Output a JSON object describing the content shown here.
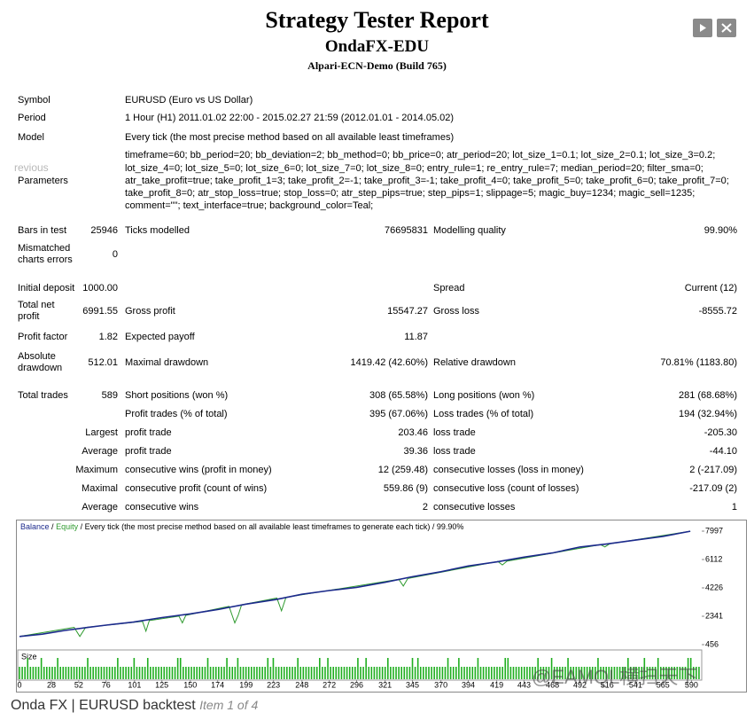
{
  "header": {
    "title": "Strategy Tester Report",
    "expert": "OndaFX-EDU",
    "server": "Alpari-ECN-Demo (Build 765)"
  },
  "nav_prev": "revious",
  "info": [
    {
      "label": "Symbol",
      "value": "EURUSD (Euro vs US Dollar)"
    },
    {
      "label": "Period",
      "value": "1 Hour (H1) 2011.01.02 22:00 - 2015.02.27 21:59 (2012.01.01 - 2014.05.02)"
    },
    {
      "label": "Model",
      "value": "Every tick (the most precise method based on all available least timeframes)"
    },
    {
      "label": "Parameters",
      "value": "timeframe=60; bb_period=20; bb_deviation=2; bb_method=0; bb_price=0; atr_period=20; lot_size_1=0.1; lot_size_2=0.1; lot_size_3=0.2; lot_size_4=0; lot_size_5=0; lot_size_6=0; lot_size_7=0; lot_size_8=0; entry_rule=1; re_entry_rule=7; median_period=20; filter_sma=0; atr_take_profit=true; take_profit_1=3; take_profit_2=-1; take_profit_3=-1; take_profit_4=0; take_profit_5=0; take_profit_6=0; take_profit_7=0; take_profit_8=0; atr_stop_loss=true; stop_loss=0; atr_step_pips=true; step_pips=1; slippage=5; magic_buy=1234; magic_sell=1235; comment=\"\"; text_interface=true; background_color=Teal;"
    }
  ],
  "stats": [
    [
      "Bars in test",
      "25946",
      "Ticks modelled",
      "76695831",
      "Modelling quality",
      "99.90%"
    ],
    [
      "Mismatched charts errors",
      "0",
      null,
      null,
      null,
      null
    ],
    [
      "Initial deposit",
      "1000.00",
      null,
      null,
      "Spread",
      "Current (12)"
    ],
    [
      "Total net profit",
      "6991.55",
      "Gross profit",
      "15547.27",
      "Gross loss",
      "-8555.72"
    ],
    [
      "Profit factor",
      "1.82",
      "Expected payoff",
      "11.87",
      null,
      null
    ],
    [
      "Absolute drawdown",
      "512.01",
      "Maximal drawdown",
      "1419.42 (42.60%)",
      "Relative drawdown",
      "70.81% (1183.80)"
    ],
    [
      "Total trades",
      "589",
      "Short positions (won %)",
      "308 (65.58%)",
      "Long positions (won %)",
      "281 (68.68%)"
    ],
    [
      null,
      null,
      "Profit trades (% of total)",
      "395 (67.06%)",
      "Loss trades (% of total)",
      "194 (32.94%)"
    ],
    [
      null,
      "Largest",
      "profit trade",
      "203.46",
      "loss trade",
      "-205.30"
    ],
    [
      null,
      "Average",
      "profit trade",
      "39.36",
      "loss trade",
      "-44.10"
    ],
    [
      null,
      "Maximum",
      "consecutive wins (profit in money)",
      "12 (259.48)",
      "consecutive losses (loss in money)",
      "2 (-217.09)"
    ],
    [
      null,
      "Maximal",
      "consecutive profit (count of wins)",
      "559.86 (9)",
      "consecutive loss (count of losses)",
      "-217.09 (2)"
    ],
    [
      null,
      "Average",
      "consecutive wins",
      "2",
      "consecutive losses",
      "1"
    ]
  ],
  "graph": {
    "type": "line",
    "legend": {
      "balance": "Balance",
      "separator": "/",
      "equity": "Equity",
      "description": "Every tick (the most precise method based on all available least timeframes to generate each tick)",
      "quality": "99.90%"
    },
    "size_label": "Size",
    "xlim": [
      0,
      599
    ],
    "ylim": [
      456,
      7997
    ],
    "xticks": [
      0,
      28,
      52,
      76,
      101,
      125,
      150,
      174,
      199,
      223,
      248,
      272,
      296,
      321,
      345,
      370,
      394,
      419,
      443,
      468,
      492,
      516,
      541,
      565,
      590
    ],
    "yticks": [
      456,
      2341,
      4226,
      6112,
      7997
    ],
    "series": [
      {
        "name": "Balance",
        "color": "#1c2a8c",
        "x": [
          0,
          20,
          40,
          60,
          76,
          100,
          125,
          150,
          175,
          199,
          225,
          248,
          272,
          296,
          321,
          345,
          370,
          394,
          419,
          443,
          468,
          492,
          516,
          541,
          565,
          589
        ],
        "values": [
          1000,
          1150,
          1400,
          1600,
          1750,
          1950,
          2250,
          2500,
          2800,
          3150,
          3450,
          3800,
          4050,
          4260,
          4600,
          4970,
          5300,
          5680,
          5950,
          6270,
          6550,
          6940,
          7150,
          7400,
          7650,
          7992
        ]
      },
      {
        "name": "Equity",
        "color": "#2e9a2e",
        "x": [
          0,
          48,
          53,
          58,
          108,
          111,
          114,
          140,
          143,
          146,
          184,
          189,
          192,
          195,
          226,
          230,
          234,
          333,
          337,
          341,
          420,
          424,
          428,
          510,
          514,
          518,
          589
        ],
        "values": [
          1000,
          1600,
          1000,
          1600,
          2000,
          1350,
          2050,
          2350,
          1900,
          2400,
          3000,
          1900,
          2400,
          3100,
          3550,
          2700,
          3600,
          4800,
          4350,
          4850,
          5980,
          5750,
          6000,
          7100,
          6950,
          7150,
          7992
        ]
      }
    ]
  },
  "caption": {
    "title": "Onda FX | EURUSD backtest",
    "item": "Item 1 of 4"
  },
  "watermark": "@EAMQL横扫天下"
}
